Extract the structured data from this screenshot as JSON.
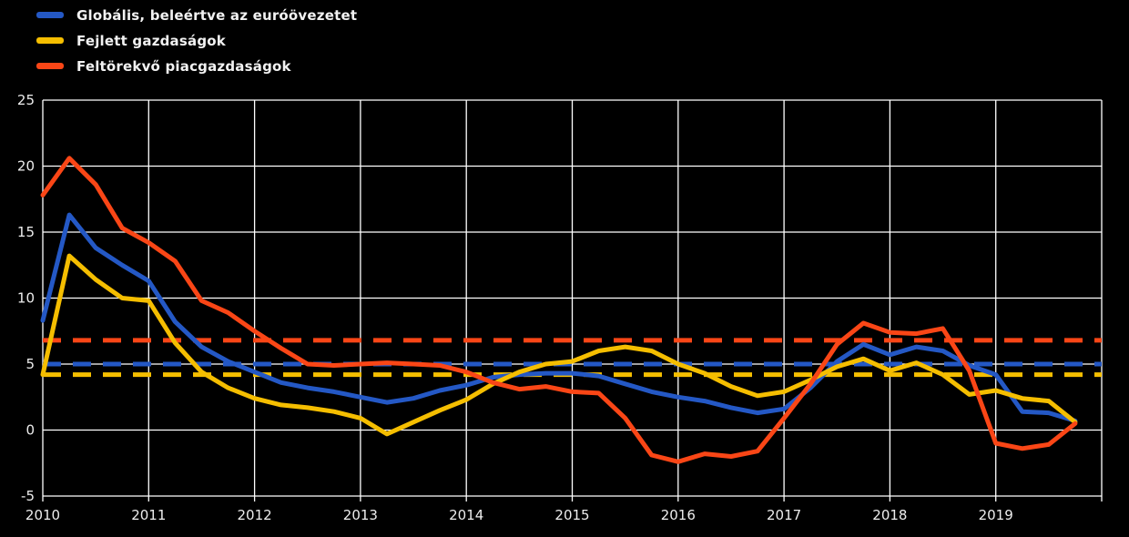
{
  "colors": {
    "background": "#000000",
    "grid": "#FFFFFF",
    "axis_text": "#EDEDED"
  },
  "legend": {
    "items": [
      {
        "id": "global",
        "label": "Globális, beleértve az euróövezetet",
        "color": "#2458C5"
      },
      {
        "id": "advanced",
        "label": "Fejlett gazdaságok",
        "color": "#F5BE00"
      },
      {
        "id": "emerging",
        "label": "Feltörekvő piacgazdaságok",
        "color": "#FA4616"
      }
    ]
  },
  "chart_data": {
    "type": "line",
    "title": "",
    "xlabel": "",
    "ylabel": "",
    "grid": true,
    "legend_position": "top-left",
    "xlim": [
      2010,
      2020
    ],
    "ylim": [
      -5,
      25
    ],
    "x_ticks": [
      2010,
      2011,
      2012,
      2013,
      2014,
      2015,
      2016,
      2017,
      2018,
      2019
    ],
    "y_ticks": [
      25,
      20,
      15,
      10,
      5,
      0,
      -5
    ],
    "x": [
      2010.0,
      2010.25,
      2010.5,
      2010.75,
      2011.0,
      2011.25,
      2011.5,
      2011.75,
      2012.0,
      2012.25,
      2012.5,
      2012.75,
      2013.0,
      2013.25,
      2013.5,
      2013.75,
      2014.0,
      2014.25,
      2014.5,
      2014.75,
      2015.0,
      2015.25,
      2015.5,
      2015.75,
      2016.0,
      2016.25,
      2016.5,
      2016.75,
      2017.0,
      2017.25,
      2017.5,
      2017.75,
      2018.0,
      2018.25,
      2018.5,
      2018.75,
      2019.0,
      2019.25,
      2019.5,
      2019.75
    ],
    "series": [
      {
        "id": "global",
        "name": "Globális, beleértve az euróövezetet",
        "color": "#2458C5",
        "style": "solid",
        "values": [
          8.3,
          16.3,
          13.8,
          12.5,
          11.3,
          8.2,
          6.3,
          5.2,
          4.4,
          3.6,
          3.2,
          2.9,
          2.5,
          2.1,
          2.4,
          3.0,
          3.4,
          4.0,
          4.2,
          4.3,
          4.3,
          4.1,
          3.5,
          2.9,
          2.5,
          2.2,
          1.7,
          1.3,
          1.6,
          3.2,
          5.2,
          6.5,
          5.7,
          6.3,
          6.0,
          4.9,
          4.2,
          1.4,
          1.3,
          0.7
        ]
      },
      {
        "id": "advanced",
        "name": "Fejlett gazdaságok",
        "color": "#F5BE00",
        "style": "solid",
        "values": [
          4.2,
          13.2,
          11.4,
          10.0,
          9.8,
          6.6,
          4.4,
          3.2,
          2.4,
          1.9,
          1.7,
          1.4,
          0.9,
          -0.3,
          0.6,
          1.5,
          2.3,
          3.5,
          4.4,
          5.0,
          5.2,
          6.0,
          6.3,
          6.0,
          5.0,
          4.3,
          3.3,
          2.6,
          2.9,
          3.8,
          4.8,
          5.4,
          4.5,
          5.1,
          4.2,
          2.7,
          3.0,
          2.4,
          2.2,
          0.6
        ]
      },
      {
        "id": "emerging",
        "name": "Feltörekvő piacgazdaságok",
        "color": "#FA4616",
        "style": "solid",
        "values": [
          17.8,
          20.6,
          18.6,
          15.3,
          14.2,
          12.8,
          9.8,
          8.9,
          7.5,
          6.2,
          5.0,
          4.9,
          5.0,
          5.1,
          5.0,
          4.9,
          4.4,
          3.6,
          3.1,
          3.3,
          2.9,
          2.8,
          0.9,
          -1.9,
          -2.4,
          -1.8,
          -2.0,
          -1.6,
          0.9,
          3.5,
          6.5,
          8.1,
          7.4,
          7.3,
          7.7,
          4.5,
          -1.0,
          -1.4,
          -1.1,
          0.5
        ]
      }
    ],
    "average_lines": [
      {
        "id": "emerging-average",
        "color": "#FA4616",
        "value": 6.8,
        "style": "dashed"
      },
      {
        "id": "global-average",
        "color": "#2458C5",
        "value": 5.0,
        "style": "dashed"
      },
      {
        "id": "advanced-average",
        "color": "#F5BE00",
        "value": 4.2,
        "style": "dashed"
      }
    ]
  }
}
